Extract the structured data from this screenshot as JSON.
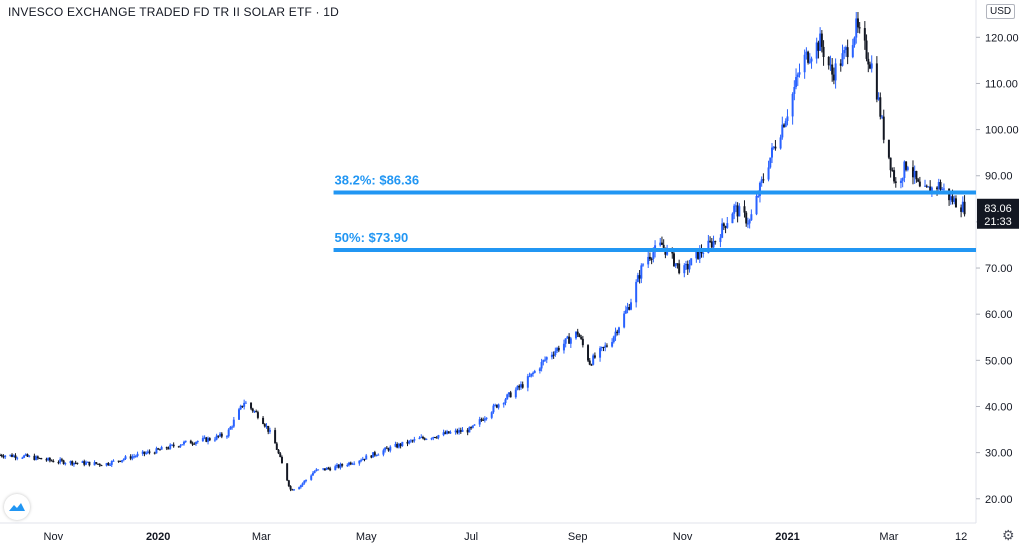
{
  "header": {
    "symbol_title": "INVESCO EXCHANGE TRADED FD TR II SOLAR ETF · 1D",
    "currency": "USD"
  },
  "icons": {
    "settings": "gear-icon",
    "logo": "tradingview-logo-icon"
  },
  "colors": {
    "up": "#2962ff",
    "down": "#131722",
    "fib_line": "#2196f3",
    "price_tag": "#131722"
  },
  "chart_data": {
    "type": "candlestick",
    "y_axis": {
      "position": "right",
      "range": [
        18,
        127
      ],
      "ticks": [
        20,
        30,
        40,
        50,
        60,
        70,
        80,
        90,
        100,
        110,
        120
      ],
      "tick_labels": [
        "20.00",
        "30.00",
        "40.00",
        "50.00",
        "60.00",
        "70.00",
        "80.00",
        "90.00",
        "100.00",
        "110.00",
        "120.00"
      ]
    },
    "x_axis": {
      "range": [
        "2019-10-01",
        "2021-04-16"
      ],
      "ticks": [
        {
          "date": "2019-11-01",
          "label": "Nov",
          "bold": false
        },
        {
          "date": "2020-01-01",
          "label": "2020",
          "bold": true
        },
        {
          "date": "2020-03-01",
          "label": "Mar",
          "bold": false
        },
        {
          "date": "2020-05-01",
          "label": "May",
          "bold": false
        },
        {
          "date": "2020-07-01",
          "label": "Jul",
          "bold": false
        },
        {
          "date": "2020-09-01",
          "label": "Sep",
          "bold": false
        },
        {
          "date": "2020-11-01",
          "label": "Nov",
          "bold": false
        },
        {
          "date": "2021-01-01",
          "label": "2021",
          "bold": true
        },
        {
          "date": "2021-03-01",
          "label": "Mar",
          "bold": false
        },
        {
          "date": "2021-04-12",
          "label": "12",
          "bold": false
        }
      ]
    },
    "price_path": [
      [
        "2019-10-01",
        29.5
      ],
      [
        "2019-10-15",
        29.2
      ],
      [
        "2019-11-01",
        28.2
      ],
      [
        "2019-11-15",
        27.8
      ],
      [
        "2019-12-01",
        27.5
      ],
      [
        "2019-12-15",
        29.0
      ],
      [
        "2020-01-01",
        30.5
      ],
      [
        "2020-01-15",
        32.0
      ],
      [
        "2020-02-01",
        33.0
      ],
      [
        "2020-02-10",
        34.0
      ],
      [
        "2020-02-20",
        41.0
      ],
      [
        "2020-03-01",
        37.5
      ],
      [
        "2020-03-08",
        33.0
      ],
      [
        "2020-03-18",
        22.0
      ],
      [
        "2020-03-24",
        23.0
      ],
      [
        "2020-04-01",
        26.0
      ],
      [
        "2020-04-15",
        27.0
      ],
      [
        "2020-05-01",
        29.0
      ],
      [
        "2020-05-15",
        31.0
      ],
      [
        "2020-06-01",
        33.0
      ],
      [
        "2020-06-15",
        34.0
      ],
      [
        "2020-07-01",
        35.0
      ],
      [
        "2020-07-15",
        40.0
      ],
      [
        "2020-08-01",
        45.0
      ],
      [
        "2020-08-15",
        51.0
      ],
      [
        "2020-09-01",
        56.0
      ],
      [
        "2020-09-08",
        49.5
      ],
      [
        "2020-09-20",
        54.0
      ],
      [
        "2020-10-01",
        62.0
      ],
      [
        "2020-10-10",
        72.0
      ],
      [
        "2020-10-20",
        75.0
      ],
      [
        "2020-11-01",
        69.0
      ],
      [
        "2020-11-10",
        73.0
      ],
      [
        "2020-11-20",
        76.0
      ],
      [
        "2020-12-01",
        83.0
      ],
      [
        "2020-12-10",
        80.0
      ],
      [
        "2020-12-20",
        92.0
      ],
      [
        "2021-01-01",
        104.0
      ],
      [
        "2021-01-10",
        115.0
      ],
      [
        "2021-01-20",
        119.0
      ],
      [
        "2021-01-27",
        112.0
      ],
      [
        "2021-02-03",
        116.0
      ],
      [
        "2021-02-10",
        122.0
      ],
      [
        "2021-02-20",
        113.0
      ],
      [
        "2021-02-26",
        99.0
      ],
      [
        "2021-03-05",
        88.0
      ],
      [
        "2021-03-12",
        93.0
      ],
      [
        "2021-03-20",
        86.0
      ],
      [
        "2021-03-30",
        88.0
      ],
      [
        "2021-04-06",
        85.0
      ],
      [
        "2021-04-14",
        83.06
      ]
    ],
    "last_price": {
      "value": 83.06,
      "label": "83.06",
      "countdown": "21:33"
    },
    "fib_levels": [
      {
        "label": "38.2%: $86.36",
        "value": 86.36,
        "start": "2020-04-12"
      },
      {
        "label": "50%: $73.90",
        "value": 73.9,
        "start": "2020-04-12"
      }
    ]
  }
}
